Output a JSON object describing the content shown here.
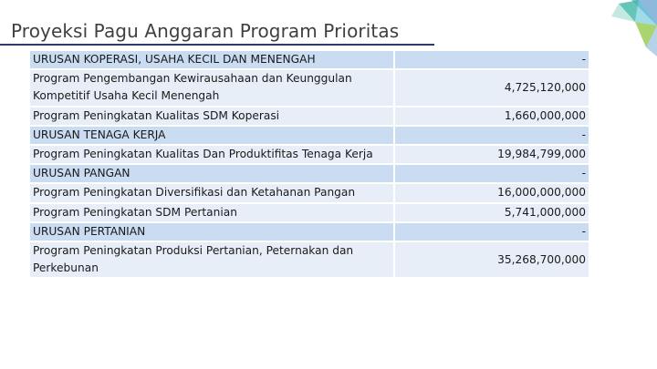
{
  "title": "Proyeksi Pagu Anggaran Program Prioritas",
  "rows": [
    {
      "kind": "hdr",
      "name": "URUSAN KOPERASI, USAHA KECIL DAN MENENGAH",
      "amount": "-"
    },
    {
      "kind": "prog",
      "name": "Program Pengembangan Kewirausahaan dan Keunggulan Kompetitif Usaha Kecil Menengah",
      "amount": "4,725,120,000"
    },
    {
      "kind": "prog",
      "name": "Program Peningkatan Kualitas SDM Koperasi",
      "amount": "1,660,000,000"
    },
    {
      "kind": "hdr",
      "name": "URUSAN TENAGA KERJA",
      "amount": "-"
    },
    {
      "kind": "prog",
      "name": "Program Peningkatan Kualitas Dan Produktifitas Tenaga Kerja",
      "amount": "19,984,799,000"
    },
    {
      "kind": "hdr",
      "name": "URUSAN PANGAN",
      "amount": "-"
    },
    {
      "kind": "prog",
      "name": "Program Peningkatan Diversifikasi dan Ketahanan Pangan",
      "amount": "16,000,000,000"
    },
    {
      "kind": "prog",
      "name": "Program Peningkatan SDM Pertanian",
      "amount": "5,741,000,000"
    },
    {
      "kind": "hdr",
      "name": "URUSAN PERTANIAN",
      "amount": "-"
    },
    {
      "kind": "prog",
      "name": "Program Peningkatan Produksi Pertanian, Peternakan dan Perkebunan",
      "amount": "35,268,700,000"
    }
  ],
  "colors": {
    "header_row": "#c9dcf2",
    "program_row": "#e8eef8",
    "title_rule": "#2d3a6b",
    "deco_teal": "#3cb8a8",
    "deco_green": "#8cc63f",
    "deco_blue": "#2f7fc1"
  }
}
